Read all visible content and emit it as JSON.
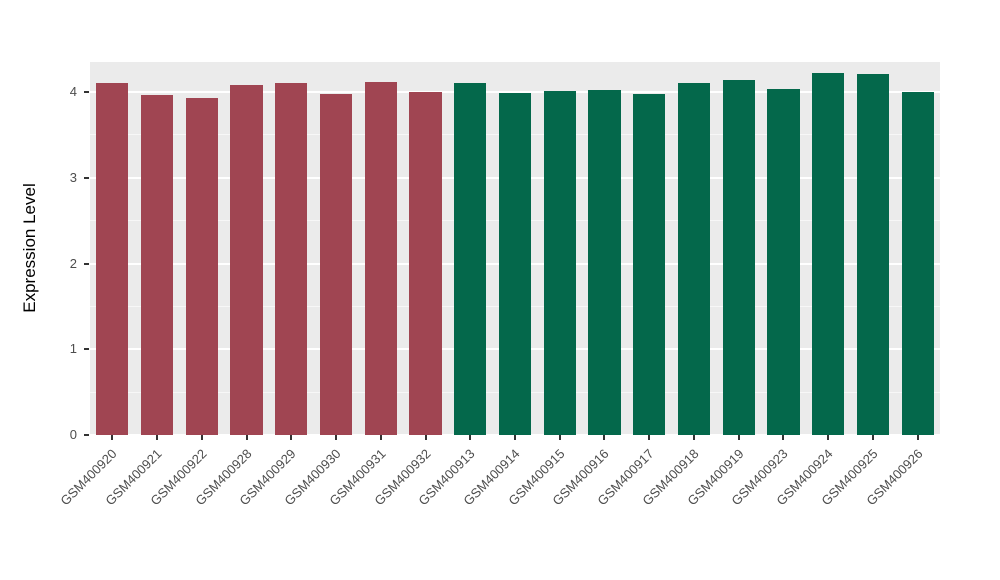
{
  "figure": {
    "background": "#FFFFFF",
    "panel_background": "#EBEBEB",
    "grid_major_color": "#FFFFFF",
    "grid_minor_color": "rgba(255,255,255,0.6)",
    "axis_text_color": "#4D4D4D",
    "tick_mark_color": "#333333",
    "axis_title_color": "#000000"
  },
  "chart_data": {
    "type": "bar",
    "title": "",
    "xlabel": "",
    "ylabel": "Expression Level",
    "ylim": [
      0,
      4.35
    ],
    "yticks": [
      0,
      1,
      2,
      3,
      4
    ],
    "yticks_minor": [
      0.5,
      1.5,
      2.5,
      3.5
    ],
    "grid": true,
    "legend": "none",
    "categories": [
      "GSM400920",
      "GSM400921",
      "GSM400922",
      "GSM400928",
      "GSM400929",
      "GSM400930",
      "GSM400931",
      "GSM400932",
      "GSM400913",
      "GSM400914",
      "GSM400915",
      "GSM400916",
      "GSM400917",
      "GSM400918",
      "GSM400919",
      "GSM400923",
      "GSM400924",
      "GSM400925",
      "GSM400926"
    ],
    "values": [
      4.1,
      3.97,
      3.93,
      4.08,
      4.11,
      3.98,
      4.12,
      4.0,
      4.1,
      3.99,
      4.01,
      4.02,
      3.98,
      4.11,
      4.14,
      4.04,
      4.22,
      4.21,
      4.0
    ],
    "groups": [
      "group1",
      "group1",
      "group1",
      "group1",
      "group1",
      "group1",
      "group1",
      "group1",
      "group2",
      "group2",
      "group2",
      "group2",
      "group2",
      "group2",
      "group2",
      "group2",
      "group2",
      "group2",
      "group2"
    ],
    "group_colors": {
      "group1": "#A04552",
      "group2": "#04684B"
    }
  }
}
